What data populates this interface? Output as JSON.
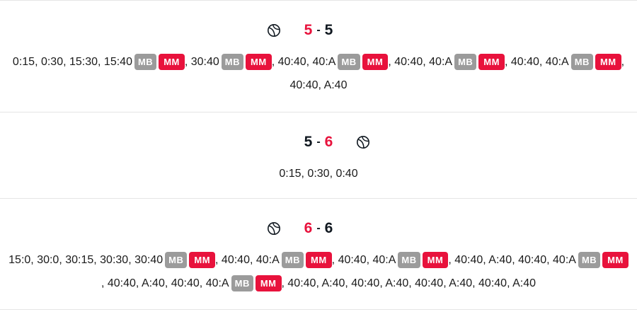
{
  "games": [
    {
      "server": "left",
      "score_left": "5",
      "score_right": "5",
      "left_color": "red",
      "right_color": "dark",
      "separator": "-",
      "points": [
        {
          "text": "0:15"
        },
        {
          "text": "0:30"
        },
        {
          "text": "15:30"
        },
        {
          "text": "15:40",
          "badges": [
            "MB",
            "MM"
          ]
        },
        {
          "text": "30:40",
          "badges": [
            "MB",
            "MM"
          ]
        },
        {
          "text": "40:40"
        },
        {
          "text": "40:A",
          "badges": [
            "MB",
            "MM"
          ]
        },
        {
          "text": "40:40"
        },
        {
          "text": "40:A",
          "badges": [
            "MB",
            "MM"
          ]
        },
        {
          "text": "40:40"
        },
        {
          "text": "40:A",
          "badges": [
            "MB",
            "MM"
          ]
        },
        {
          "text": "40:40"
        },
        {
          "text": "A:40"
        }
      ]
    },
    {
      "server": "right",
      "score_left": "5",
      "score_right": "6",
      "left_color": "dark",
      "right_color": "red",
      "separator": "-",
      "points": [
        {
          "text": "0:15"
        },
        {
          "text": "0:30"
        },
        {
          "text": "0:40"
        }
      ]
    },
    {
      "server": "left",
      "score_left": "6",
      "score_right": "6",
      "left_color": "red",
      "right_color": "dark",
      "separator": "-",
      "points": [
        {
          "text": "15:0"
        },
        {
          "text": "30:0"
        },
        {
          "text": "30:15"
        },
        {
          "text": "30:30"
        },
        {
          "text": "30:40",
          "badges": [
            "MB",
            "MM"
          ]
        },
        {
          "text": "40:40"
        },
        {
          "text": "40:A",
          "badges": [
            "MB",
            "MM"
          ]
        },
        {
          "text": "40:40"
        },
        {
          "text": "40:A",
          "badges": [
            "MB",
            "MM"
          ]
        },
        {
          "text": "40:40"
        },
        {
          "text": "A:40"
        },
        {
          "text": "40:40"
        },
        {
          "text": "40:A",
          "badges": [
            "MB",
            "MM"
          ]
        },
        {
          "text": "40:40"
        },
        {
          "text": "A:40"
        },
        {
          "text": "40:40"
        },
        {
          "text": "40:A",
          "badges": [
            "MB",
            "MM"
          ]
        },
        {
          "text": "40:40"
        },
        {
          "text": "A:40"
        },
        {
          "text": "40:40"
        },
        {
          "text": "A:40"
        },
        {
          "text": "40:40"
        },
        {
          "text": "A:40"
        },
        {
          "text": "40:40"
        },
        {
          "text": "A:40"
        }
      ]
    }
  ],
  "colors": {
    "accent_red": "#e8123c",
    "dark": "#101820",
    "badge_grey": "#9b9b9b"
  },
  "icons": {
    "serve": "tennis-ball-icon"
  }
}
